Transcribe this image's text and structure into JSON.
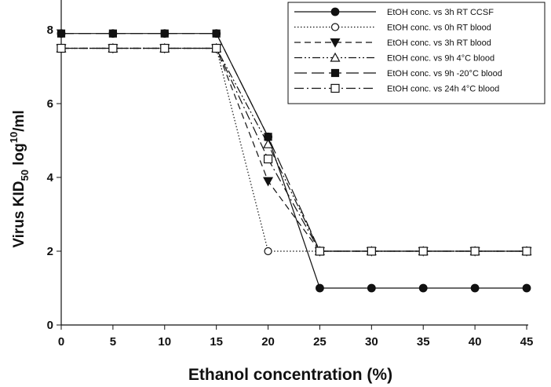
{
  "chart_data": {
    "type": "line",
    "title": "",
    "xlabel": "Ethanol concentration (%)",
    "ylabel": {
      "prefix": "Virus KID",
      "sub": "50",
      "mid": " log",
      "sup": "10",
      "suffix": "/ml"
    },
    "x": [
      0,
      5,
      10,
      15,
      20,
      25,
      30,
      35,
      40,
      45
    ],
    "xlim": [
      0,
      45
    ],
    "ylim": [
      0,
      8
    ],
    "xticks": [
      0,
      5,
      10,
      15,
      20,
      25,
      30,
      35,
      40,
      45
    ],
    "yticks": [
      0,
      2,
      4,
      6,
      8
    ],
    "grid": false,
    "legend_position": "top-right",
    "series": [
      {
        "name": "EtOH conc. vs 3h RT CCSF",
        "dash": "solid",
        "marker": "filled-circle",
        "values": [
          7.9,
          7.9,
          7.9,
          7.9,
          5.1,
          1.0,
          1.0,
          1.0,
          1.0,
          1.0
        ]
      },
      {
        "name": "EtOH conc. vs 0h RT blood",
        "dash": "dotted",
        "marker": "open-circle",
        "values": [
          7.5,
          7.5,
          7.5,
          7.5,
          2.0,
          2.0,
          2.0,
          2.0,
          2.0,
          2.0
        ]
      },
      {
        "name": "EtOH conc. vs 3h RT blood",
        "dash": "dashed",
        "marker": "filled-triangle-down",
        "values": [
          7.5,
          7.5,
          7.5,
          7.5,
          3.9,
          2.0,
          2.0,
          2.0,
          2.0,
          2.0
        ]
      },
      {
        "name": "EtOH conc. vs 9h 4°C blood",
        "dash": "dash-dot-dot",
        "marker": "open-triangle-up",
        "values": [
          7.5,
          7.5,
          7.5,
          7.5,
          4.9,
          2.0,
          2.0,
          2.0,
          2.0,
          2.0
        ]
      },
      {
        "name": "EtOH conc. vs 9h -20°C blood",
        "dash": "long-dash",
        "marker": "filled-square",
        "values": [
          7.9,
          7.9,
          7.9,
          7.9,
          5.1,
          2.0,
          2.0,
          2.0,
          2.0,
          2.0
        ]
      },
      {
        "name": "EtOH conc. vs 24h 4°C blood",
        "dash": "dash-dot",
        "marker": "open-square",
        "values": [
          7.5,
          7.5,
          7.5,
          7.5,
          4.5,
          2.0,
          2.0,
          2.0,
          2.0,
          2.0
        ]
      }
    ]
  }
}
